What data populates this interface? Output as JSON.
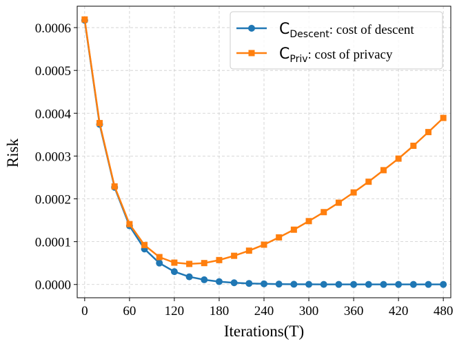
{
  "chart_data": {
    "type": "line",
    "xlabel": "Iterations(T)",
    "ylabel": "Risk",
    "xlim": [
      -10,
      490
    ],
    "ylim": [
      -3.1e-05,
      0.00065
    ],
    "xticks": [
      0,
      60,
      120,
      180,
      240,
      300,
      360,
      420,
      480
    ],
    "xtick_labels": [
      "0",
      "60",
      "120",
      "180",
      "240",
      "300",
      "360",
      "420",
      "480"
    ],
    "yticks": [
      0,
      0.0001,
      0.0002,
      0.0003,
      0.0004,
      0.0005,
      0.0006
    ],
    "ytick_labels": [
      "0.0000",
      "0.0001",
      "0.0002",
      "0.0003",
      "0.0004",
      "0.0005",
      "0.0006"
    ],
    "grid": true,
    "legend_position": "top-right",
    "x": [
      0,
      20,
      40,
      60,
      80,
      100,
      120,
      140,
      160,
      180,
      200,
      220,
      240,
      260,
      280,
      300,
      320,
      340,
      360,
      380,
      400,
      420,
      440,
      460,
      480
    ],
    "series": [
      {
        "name_main": "C",
        "name_sub": "Descent",
        "name_rest": ": cost of descent",
        "color": "#1f77b4",
        "marker": "circle",
        "values": [
          0.000617,
          0.000374,
          0.000227,
          0.000137,
          8.3e-05,
          5e-05,
          3e-05,
          1.8e-05,
          1.1e-05,
          6.7e-06,
          4e-06,
          2.5e-06,
          1.5e-06,
          9e-07,
          5e-07,
          3e-07,
          2e-07,
          1e-07,
          1e-07,
          1e-07,
          1e-07,
          1e-07,
          1e-07,
          1e-07,
          1e-07
        ]
      },
      {
        "name_main": "C",
        "name_sub": "Priv",
        "name_rest": ": cost of privacy",
        "color": "#ff7f0e",
        "marker": "square",
        "values": [
          0.000619,
          0.000377,
          0.000229,
          0.000141,
          9.2e-05,
          6.4e-05,
          5.1e-05,
          4.8e-05,
          5e-05,
          5.7e-05,
          6.7e-05,
          7.9e-05,
          9.3e-05,
          0.00011,
          0.000128,
          0.000148,
          0.000169,
          0.000191,
          0.000215,
          0.00024,
          0.000267,
          0.000294,
          0.000324,
          0.000356,
          0.000389
        ]
      }
    ]
  }
}
